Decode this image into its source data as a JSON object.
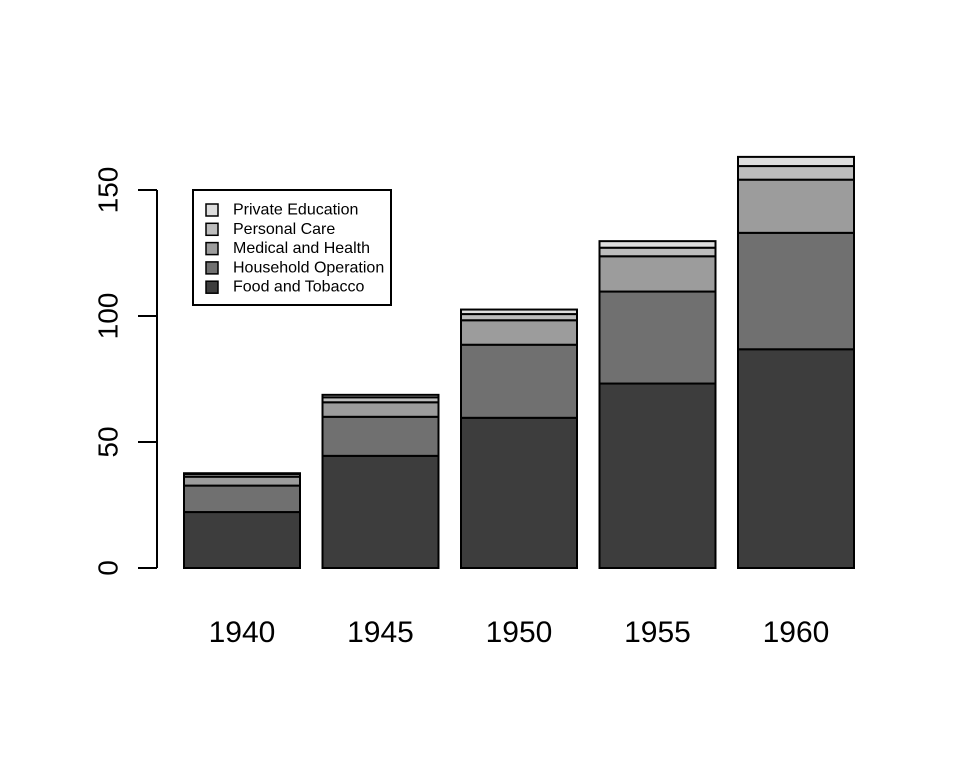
{
  "chart_data": {
    "type": "bar",
    "stacked": true,
    "categories": [
      "1940",
      "1945",
      "1950",
      "1955",
      "1960"
    ],
    "series": [
      {
        "name": "Food and Tobacco",
        "color": "#3d3d3d",
        "values": [
          22.2,
          44.5,
          59.6,
          73.2,
          86.8
        ]
      },
      {
        "name": "Household Operation",
        "color": "#707070",
        "values": [
          10.5,
          15.5,
          29.0,
          36.5,
          46.2
        ]
      },
      {
        "name": "Medical and Health",
        "color": "#9c9c9c",
        "values": [
          3.53,
          5.76,
          9.71,
          14.0,
          21.1
        ]
      },
      {
        "name": "Personal Care",
        "color": "#bdbdbd",
        "values": [
          1.04,
          1.98,
          2.45,
          3.4,
          5.4
        ]
      },
      {
        "name": "Private Education",
        "color": "#dedede",
        "values": [
          0.341,
          0.974,
          1.8,
          2.6,
          3.64
        ]
      }
    ],
    "y_ticks": [
      0,
      50,
      100,
      150
    ],
    "ylim": [
      0,
      165
    ],
    "title": "",
    "xlabel": "",
    "ylabel": "",
    "legend": {
      "position": "top-left",
      "order": [
        "Private Education",
        "Personal Care",
        "Medical and Health",
        "Household Operation",
        "Food and Tobacco"
      ]
    },
    "grid": false
  }
}
